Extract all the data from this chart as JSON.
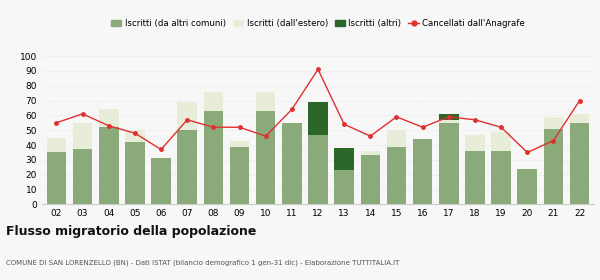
{
  "years": [
    "02",
    "03",
    "04",
    "05",
    "06",
    "07",
    "08",
    "09",
    "10",
    "11",
    "12",
    "13",
    "14",
    "15",
    "16",
    "17",
    "18",
    "19",
    "20",
    "21",
    "22"
  ],
  "iscritti_altri_comuni": [
    35,
    37,
    52,
    42,
    31,
    50,
    63,
    39,
    63,
    55,
    47,
    23,
    33,
    39,
    44,
    55,
    36,
    36,
    24,
    51,
    55
  ],
  "iscritti_estero": [
    10,
    18,
    12,
    8,
    0,
    19,
    13,
    4,
    13,
    0,
    0,
    0,
    3,
    11,
    0,
    2,
    11,
    13,
    0,
    8,
    6
  ],
  "iscritti_altri": [
    0,
    0,
    0,
    0,
    0,
    0,
    0,
    0,
    0,
    0,
    22,
    15,
    0,
    0,
    0,
    4,
    0,
    0,
    0,
    0,
    0
  ],
  "cancellati": [
    55,
    61,
    53,
    48,
    37,
    57,
    52,
    52,
    46,
    64,
    91,
    54,
    46,
    59,
    52,
    59,
    57,
    52,
    35,
    43,
    70
  ],
  "color_altri_comuni": "#8aaa79",
  "color_estero": "#e8edda",
  "color_altri": "#2d6629",
  "color_cancellati": "#e03030",
  "legend_labels": [
    "Iscritti (da altri comuni)",
    "Iscritti (dall'estero)",
    "Iscritti (altri)",
    "Cancellati dall'Anagrafe"
  ],
  "title": "Flusso migratorio della popolazione",
  "subtitle": "COMUNE DI SAN LORENZELLO (BN) - Dati ISTAT (bilancio demografico 1 gen-31 dic) - Elaborazione TUTTITALIA.IT",
  "ylim": [
    0,
    100
  ],
  "yticks": [
    0,
    10,
    20,
    30,
    40,
    50,
    60,
    70,
    80,
    90,
    100
  ],
  "grid_color": "#dddddd",
  "bg_color": "#f7f7f7"
}
